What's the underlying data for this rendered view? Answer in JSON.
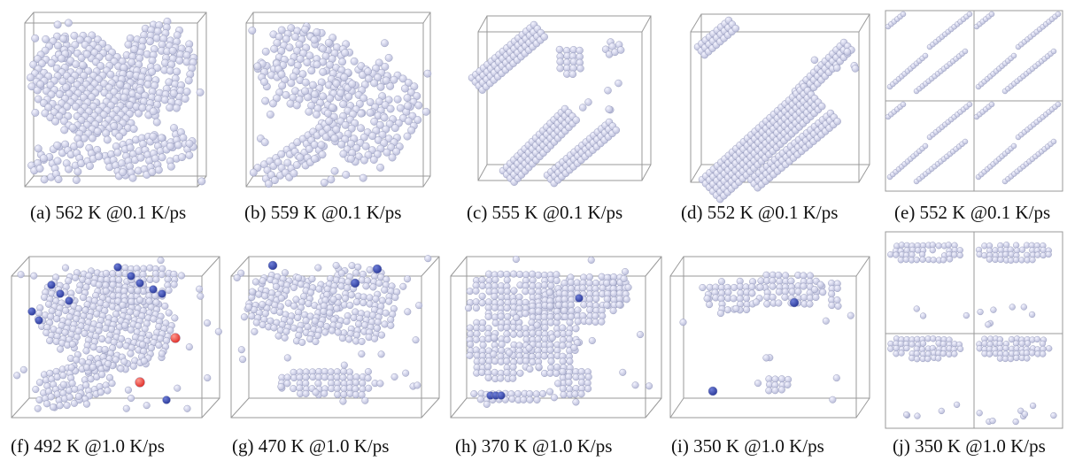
{
  "panels": [
    {
      "id": "a",
      "caption": "(a) 562 K @0.1 K/ps"
    },
    {
      "id": "b",
      "caption": "(b) 559 K @0.1 K/ps"
    },
    {
      "id": "c",
      "caption": "(c) 555 K @0.1 K/ps"
    },
    {
      "id": "d",
      "caption": "(d) 552 K @0.1 K/ps"
    },
    {
      "id": "e",
      "caption": "(e) 552 K @0.1 K/ps"
    },
    {
      "id": "f",
      "caption": "(f) 492 K @1.0 K/ps"
    },
    {
      "id": "g",
      "caption": "(g) 470 K @1.0 K/ps"
    },
    {
      "id": "h",
      "caption": "(h) 370 K @1.0 K/ps"
    },
    {
      "id": "i",
      "caption": "(i) 350 K @1.0 K/ps"
    },
    {
      "id": "j",
      "caption": "(j) 350 K @1.0 K/ps"
    }
  ],
  "colors": {
    "atom": "#b9bcd9",
    "atom_highlight": "#f4f4ff",
    "atom_blue": "#2b3a9a",
    "atom_red": "#e0302a",
    "frame": "#9a9a9a"
  }
}
